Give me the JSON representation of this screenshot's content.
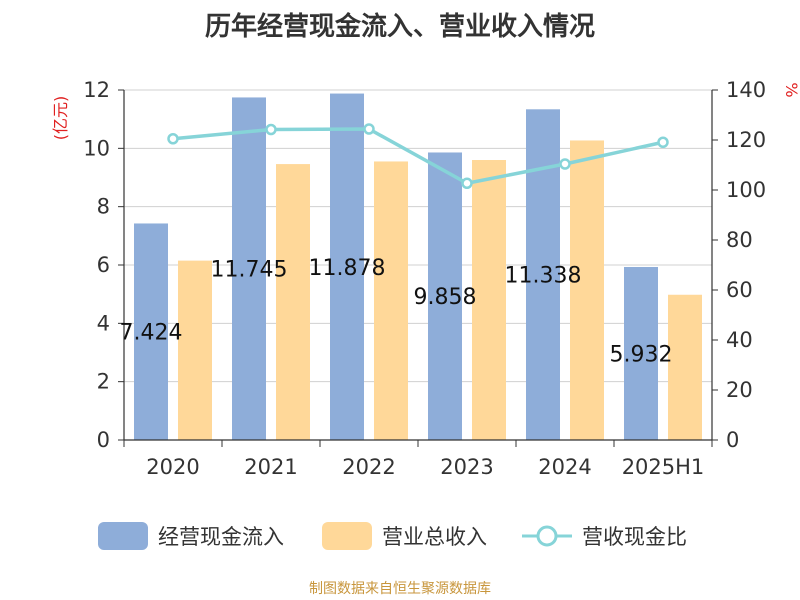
{
  "chart_data": {
    "type": "bar",
    "title": "历年经营现金流入、营业收入情况",
    "categories": [
      "2020",
      "2021",
      "2022",
      "2023",
      "2024",
      "2025H1"
    ],
    "y_left": {
      "label": "(亿元)",
      "range": [
        0,
        12
      ],
      "ticks": [
        "0",
        "2",
        "4",
        "6",
        "8",
        "10",
        "12"
      ]
    },
    "y_right": {
      "label": "%",
      "range": [
        0,
        140
      ],
      "ticks": [
        "0",
        "20",
        "40",
        "60",
        "80",
        "100",
        "120",
        "140"
      ]
    },
    "series": [
      {
        "name": "经营现金流入",
        "type": "bar",
        "axis": "left",
        "color": "#8eadd9",
        "values": [
          7.424,
          11.745,
          11.878,
          9.858,
          11.338,
          5.932
        ],
        "data_labels": [
          "7.424",
          "11.745",
          "11.878",
          "9.858",
          "11.338",
          "5.932"
        ]
      },
      {
        "name": "营业总收入",
        "type": "bar",
        "axis": "left",
        "color": "#ffd899",
        "values": [
          6.15,
          9.46,
          9.55,
          9.6,
          10.27,
          4.98
        ]
      },
      {
        "name": "营收现金比",
        "type": "line",
        "axis": "right",
        "color": "#86d4d8",
        "values": [
          120.5,
          124.2,
          124.4,
          102.7,
          110.4,
          119.1
        ]
      }
    ],
    "grid": true,
    "legend_position": "bottom"
  },
  "source_note": "制图数据来自恒生聚源数据库"
}
